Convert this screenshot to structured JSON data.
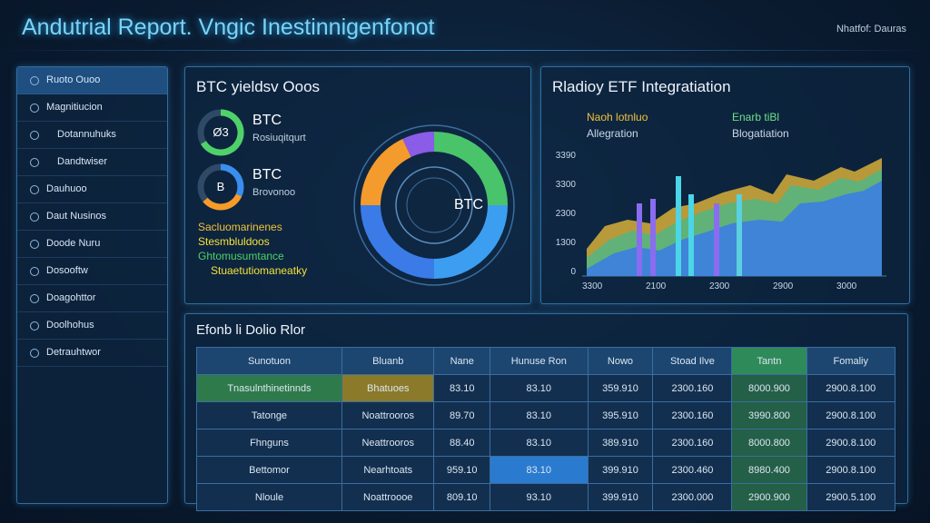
{
  "header": {
    "title": "Andutrial Report. Vngic Inestinnigenfonot",
    "right": "Nhatfof: Dauras"
  },
  "sidebar": [
    "Ruoto Ouoo",
    "Magnitiucion",
    "Dotannuhuks",
    "Dandtwiser",
    "Dauhuoo",
    "Daut Nusinos",
    "Doode Nuru",
    "Dosooftw",
    "Doagohttor",
    "Doolhohus",
    "Detrauhtwor"
  ],
  "btc_panel": {
    "title": "BTC yieldsv Ooos",
    "items": [
      {
        "icon": "Ø3",
        "name": "BTC",
        "sub": "Rosiuqitqurt"
      },
      {
        "icon": "B",
        "name": "BTC",
        "sub": "Brovonoo"
      }
    ],
    "bullets": [
      "Sacluomarinenes",
      "Stesmbluldoos",
      "Ghtomusumtance",
      "Stuaetutiomaneatky"
    ],
    "center": "BTC"
  },
  "etf_panel": {
    "title": "Rladioy ETF Integratiation",
    "legend": [
      {
        "line1": "Naoh lotnluo",
        "line2": "Allegration"
      },
      {
        "line1": "Enarb tiBl",
        "line2": "Blogatiation"
      }
    ],
    "yticks": [
      "3390",
      "3300",
      "2300",
      "1300",
      "0"
    ],
    "xticks": [
      "3300",
      "2100",
      "2300",
      "2900",
      "3000"
    ]
  },
  "table": {
    "title": "Efonb li Dolio Rlor",
    "columns": [
      "Sunotuon",
      "Bluanb",
      "Nane",
      "Hunuse Ron",
      "Nowo",
      "Stoad Ilve",
      "Tantn",
      "Fomaliy"
    ],
    "rows": [
      [
        "Tnasulnthinetinnds",
        "Bhatuoes",
        "83.10",
        "83.10",
        "359.910",
        "2300.160",
        "8000.900",
        "2900.8.100"
      ],
      [
        "Tatonge",
        "Noattrooros",
        "89.70",
        "83.10",
        "395.910",
        "2300.160",
        "3990.800",
        "2900.8.100"
      ],
      [
        "Fhnguns",
        "Neattrooros",
        "88.40",
        "83.10",
        "389.910",
        "2300.160",
        "8000.800",
        "2900.8.100"
      ],
      [
        "Bettomor",
        "Nearhtoats",
        "959.10",
        "83.10",
        "399.910",
        "2300.460",
        "8980.400",
        "2900.8.100"
      ],
      [
        "Nloule",
        "Noattroooe",
        "809.10",
        "93.10",
        "399.910",
        "2300.000",
        "2900.900",
        "2900.5.100"
      ]
    ]
  }
}
